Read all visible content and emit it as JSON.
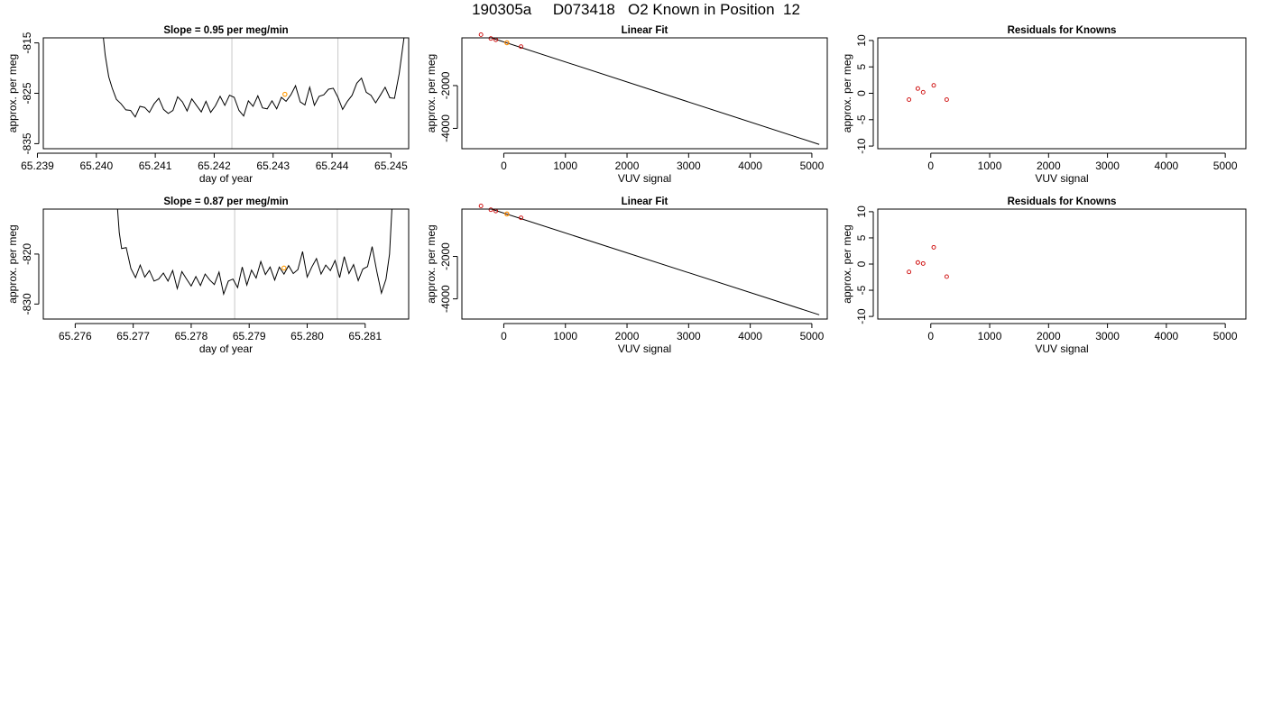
{
  "page": {
    "title": "190305a     D073418   O2 Known in Position  12"
  },
  "chart_data": [
    {
      "type": "line",
      "title": "Slope =  0.95  per meg/min",
      "xlabel": "day of year",
      "ylabel": "approx. per meg",
      "xlim": [
        65.2391,
        65.2453
      ],
      "ylim": [
        -836.0,
        -814.0
      ],
      "xticks": [
        65.239,
        65.24,
        65.241,
        65.242,
        65.243,
        65.244,
        65.245
      ],
      "xtick_labels": [
        "65.239",
        "65.240",
        "65.241",
        "65.242",
        "65.243",
        "65.244",
        "65.245"
      ],
      "yticks": [
        -815,
        -825,
        -835
      ],
      "ytick_labels": [
        "-815",
        "-825",
        "-835"
      ],
      "vlines": [
        65.2423,
        65.2441
      ],
      "series": [
        {
          "color": "#000000",
          "points": [
            [
              65.24012,
              -814.0
            ],
            [
              65.24015,
              -817.4
            ],
            [
              65.24021,
              -821.7
            ],
            [
              65.24027,
              -824.0
            ],
            [
              65.24034,
              -826.2
            ],
            [
              65.24042,
              -827.1
            ],
            [
              65.2405,
              -828.3
            ],
            [
              65.24058,
              -828.4
            ],
            [
              65.24066,
              -829.7
            ],
            [
              65.24074,
              -827.6
            ],
            [
              65.24082,
              -827.8
            ],
            [
              65.2409,
              -828.8
            ],
            [
              65.24098,
              -827.1
            ],
            [
              65.24106,
              -826.0
            ],
            [
              65.24114,
              -828.2
            ],
            [
              65.24122,
              -829.0
            ],
            [
              65.2413,
              -828.4
            ],
            [
              65.24138,
              -825.7
            ],
            [
              65.24146,
              -826.7
            ],
            [
              65.24154,
              -828.5
            ],
            [
              65.24162,
              -826.1
            ],
            [
              65.2417,
              -827.4
            ],
            [
              65.24178,
              -828.7
            ],
            [
              65.24186,
              -826.6
            ],
            [
              65.24194,
              -828.8
            ],
            [
              65.24202,
              -827.5
            ],
            [
              65.2421,
              -825.6
            ],
            [
              65.24218,
              -827.4
            ],
            [
              65.24226,
              -825.4
            ],
            [
              65.24234,
              -825.8
            ],
            [
              65.24242,
              -828.4
            ],
            [
              65.2425,
              -829.5
            ],
            [
              65.24258,
              -826.5
            ],
            [
              65.24266,
              -827.6
            ],
            [
              65.24274,
              -825.5
            ],
            [
              65.24282,
              -827.9
            ],
            [
              65.2429,
              -828.1
            ],
            [
              65.24298,
              -826.5
            ],
            [
              65.24306,
              -828.1
            ],
            [
              65.24314,
              -825.8
            ],
            [
              65.24322,
              -826.6
            ],
            [
              65.2433,
              -825.3
            ],
            [
              65.24338,
              -823.5
            ],
            [
              65.24346,
              -826.7
            ],
            [
              65.24354,
              -827.3
            ],
            [
              65.24362,
              -823.8
            ],
            [
              65.2437,
              -827.4
            ],
            [
              65.24378,
              -825.6
            ],
            [
              65.24386,
              -825.3
            ],
            [
              65.24394,
              -824.2
            ],
            [
              65.24402,
              -824.0
            ],
            [
              65.2441,
              -825.8
            ],
            [
              65.24418,
              -828.2
            ],
            [
              65.24426,
              -826.6
            ],
            [
              65.24434,
              -825.4
            ],
            [
              65.24442,
              -823.0
            ],
            [
              65.2445,
              -822.0
            ],
            [
              65.24458,
              -824.8
            ],
            [
              65.24466,
              -825.4
            ],
            [
              65.24474,
              -826.9
            ],
            [
              65.24482,
              -825.4
            ],
            [
              65.2449,
              -823.8
            ],
            [
              65.24498,
              -825.9
            ],
            [
              65.24506,
              -826.0
            ],
            [
              65.24514,
              -821.1
            ],
            [
              65.24522,
              -814.0
            ]
          ]
        }
      ],
      "highlight_points": [
        {
          "x": 65.2432,
          "y": -825.2,
          "color": "#ff9900"
        }
      ]
    },
    {
      "type": "scatter",
      "title": "Linear Fit",
      "xlabel": "VUV signal",
      "ylabel": "approx. per meg",
      "xlim": [
        -680,
        5250
      ],
      "ylim": [
        -4950,
        230
      ],
      "xticks": [
        0,
        1000,
        2000,
        3000,
        4000,
        5000
      ],
      "xtick_labels": [
        "0",
        "1000",
        "2000",
        "3000",
        "4000",
        "5000"
      ],
      "yticks": [
        -2000,
        -4000
      ],
      "ytick_labels": [
        "-2000",
        "-4000"
      ],
      "fit_line": [
        [
          -630,
          630
        ],
        [
          5120,
          -4750
        ]
      ],
      "series": [
        {
          "color": "#cc0000",
          "points": [
            [
              -370,
              380
            ],
            [
              -210,
              200
            ],
            [
              -130,
              140
            ],
            [
              50,
              0
            ],
            [
              280,
              -180
            ]
          ]
        }
      ],
      "highlight_points": [
        {
          "x": 50,
          "y": 0,
          "color": "#ff9900"
        }
      ]
    },
    {
      "type": "scatter",
      "title": "Residuals for Knowns",
      "xlabel": "VUV signal",
      "ylabel": "approx. per meg",
      "xlim": [
        -900,
        5350
      ],
      "ylim": [
        -10.5,
        10.5
      ],
      "xticks": [
        0,
        1000,
        2000,
        3000,
        4000,
        5000
      ],
      "xtick_labels": [
        "0",
        "1000",
        "2000",
        "3000",
        "4000",
        "5000"
      ],
      "yticks": [
        10,
        5,
        0,
        -5,
        -10
      ],
      "ytick_labels": [
        "10",
        "5",
        "0",
        "-5",
        "-10"
      ],
      "series": [
        {
          "color": "#cc0000",
          "points": [
            [
              -370,
              -1.2
            ],
            [
              -220,
              0.9
            ],
            [
              -130,
              0.2
            ],
            [
              50,
              1.5
            ],
            [
              270,
              -1.2
            ]
          ]
        }
      ]
    },
    {
      "type": "line",
      "title": "Slope =  0.87  per meg/min",
      "xlabel": "day of year",
      "ylabel": "approx. per meg",
      "xlim": [
        65.27545,
        65.28175
      ],
      "ylim": [
        -833.0,
        -811.0
      ],
      "xticks": [
        65.276,
        65.277,
        65.278,
        65.279,
        65.28,
        65.281
      ],
      "xtick_labels": [
        "65.276",
        "65.277",
        "65.278",
        "65.279",
        "65.280",
        "65.281"
      ],
      "yticks": [
        -820,
        -830
      ],
      "ytick_labels": [
        "-820",
        "-830"
      ],
      "vlines": [
        65.27875,
        65.28052
      ],
      "series": [
        {
          "color": "#000000",
          "points": [
            [
              65.27673,
              -811.0
            ],
            [
              65.27676,
              -815.7
            ],
            [
              65.2768,
              -818.9
            ],
            [
              65.27688,
              -818.7
            ],
            [
              65.27696,
              -822.9
            ],
            [
              65.27704,
              -824.7
            ],
            [
              65.27712,
              -822.2
            ],
            [
              65.2772,
              -824.6
            ],
            [
              65.27728,
              -823.3
            ],
            [
              65.27736,
              -825.4
            ],
            [
              65.27744,
              -825.0
            ],
            [
              65.27752,
              -823.8
            ],
            [
              65.2776,
              -825.4
            ],
            [
              65.27768,
              -823.3
            ],
            [
              65.27776,
              -826.9
            ],
            [
              65.27784,
              -823.5
            ],
            [
              65.27792,
              -825.0
            ],
            [
              65.278,
              -826.4
            ],
            [
              65.27808,
              -824.5
            ],
            [
              65.27816,
              -826.3
            ],
            [
              65.27824,
              -824.0
            ],
            [
              65.27832,
              -825.2
            ],
            [
              65.2784,
              -826.1
            ],
            [
              65.27848,
              -823.6
            ],
            [
              65.27856,
              -828.0
            ],
            [
              65.27864,
              -825.4
            ],
            [
              65.27872,
              -825.0
            ],
            [
              65.2788,
              -826.7
            ],
            [
              65.27888,
              -822.6
            ],
            [
              65.27896,
              -826.2
            ],
            [
              65.27904,
              -823.2
            ],
            [
              65.27912,
              -824.8
            ],
            [
              65.2792,
              -821.5
            ],
            [
              65.27928,
              -824.1
            ],
            [
              65.27936,
              -822.6
            ],
            [
              65.27944,
              -825.2
            ],
            [
              65.27952,
              -822.6
            ],
            [
              65.2796,
              -824.0
            ],
            [
              65.27968,
              -822.3
            ],
            [
              65.27976,
              -823.9
            ],
            [
              65.27984,
              -823.1
            ],
            [
              65.27992,
              -819.5
            ],
            [
              65.28,
              -824.6
            ],
            [
              65.28008,
              -822.6
            ],
            [
              65.28016,
              -820.9
            ],
            [
              65.28024,
              -824.0
            ],
            [
              65.28032,
              -822.2
            ],
            [
              65.2804,
              -823.3
            ],
            [
              65.28048,
              -821.3
            ],
            [
              65.28056,
              -824.7
            ],
            [
              65.28064,
              -820.5
            ],
            [
              65.28072,
              -823.9
            ],
            [
              65.2808,
              -822.1
            ],
            [
              65.28088,
              -825.3
            ],
            [
              65.28096,
              -823.0
            ],
            [
              65.28104,
              -822.5
            ],
            [
              65.28112,
              -818.5
            ],
            [
              65.2812,
              -823.4
            ],
            [
              65.28128,
              -827.8
            ],
            [
              65.28136,
              -825.0
            ],
            [
              65.28142,
              -820.0
            ],
            [
              65.28146,
              -811.0
            ]
          ]
        }
      ],
      "highlight_points": [
        {
          "x": 65.2796,
          "y": -822.8,
          "color": "#ff9900"
        }
      ]
    },
    {
      "type": "scatter",
      "title": "Linear Fit",
      "xlabel": "VUV signal",
      "ylabel": "approx. per meg",
      "xlim": [
        -680,
        5250
      ],
      "ylim": [
        -4950,
        230
      ],
      "xticks": [
        0,
        1000,
        2000,
        3000,
        4000,
        5000
      ],
      "xtick_labels": [
        "0",
        "1000",
        "2000",
        "3000",
        "4000",
        "5000"
      ],
      "yticks": [
        -2000,
        -4000
      ],
      "ytick_labels": [
        "-2000",
        "-4000"
      ],
      "fit_line": [
        [
          -630,
          630
        ],
        [
          5120,
          -4750
        ]
      ],
      "series": [
        {
          "color": "#cc0000",
          "points": [
            [
              -370,
              380
            ],
            [
              -210,
              200
            ],
            [
              -130,
              140
            ],
            [
              50,
              0
            ],
            [
              280,
              -180
            ]
          ]
        }
      ],
      "highlight_points": [
        {
          "x": 50,
          "y": 0,
          "color": "#ff9900"
        }
      ]
    },
    {
      "type": "scatter",
      "title": "Residuals for Knowns",
      "xlabel": "VUV signal",
      "ylabel": "approx. per meg",
      "xlim": [
        -900,
        5350
      ],
      "ylim": [
        -10.5,
        10.5
      ],
      "xticks": [
        0,
        1000,
        2000,
        3000,
        4000,
        5000
      ],
      "xtick_labels": [
        "0",
        "1000",
        "2000",
        "3000",
        "4000",
        "5000"
      ],
      "yticks": [
        10,
        5,
        0,
        -5,
        -10
      ],
      "ytick_labels": [
        "10",
        "5",
        "0",
        "-5",
        "-10"
      ],
      "series": [
        {
          "color": "#cc0000",
          "points": [
            [
              -370,
              -1.5
            ],
            [
              -220,
              0.3
            ],
            [
              -130,
              0.1
            ],
            [
              50,
              3.2
            ],
            [
              270,
              -2.4
            ]
          ]
        }
      ]
    }
  ]
}
